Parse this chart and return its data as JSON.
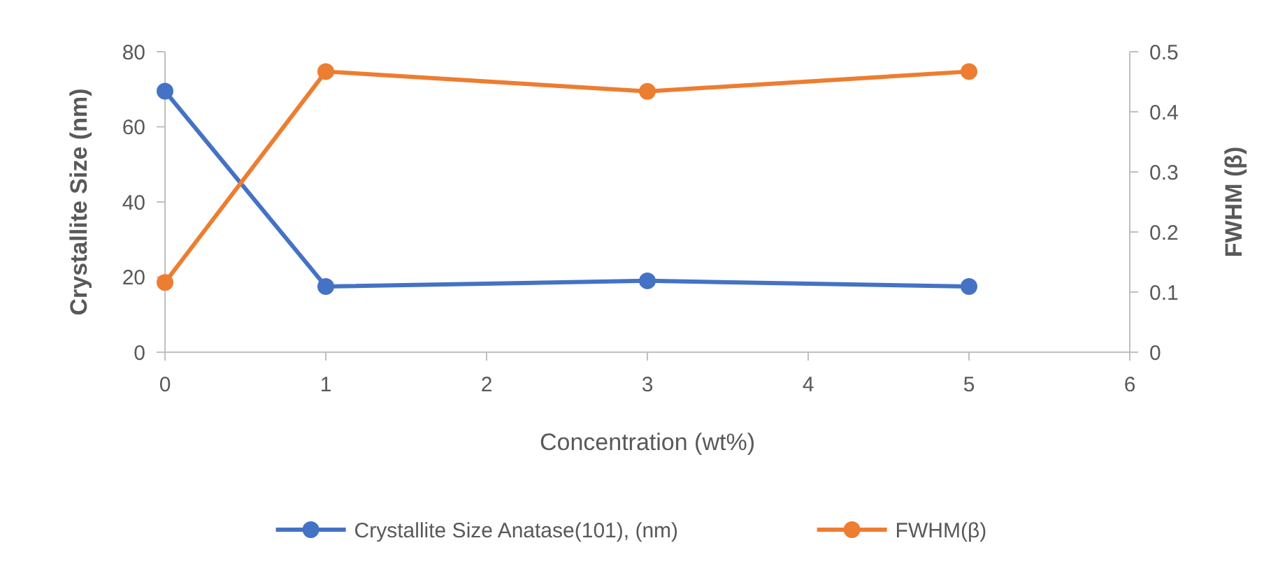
{
  "chart_data": {
    "type": "line",
    "xlabel": "Concentration (wt%)",
    "ylabel": "Crystallite Size (nm)",
    "y2label": "FWHM (β)",
    "xlim": [
      0,
      6
    ],
    "xticks": [
      0,
      1,
      2,
      3,
      4,
      5,
      6
    ],
    "ylim": [
      0,
      80
    ],
    "yticks": [
      0,
      20,
      40,
      60,
      80
    ],
    "y2lim": [
      0,
      0.5
    ],
    "y2ticks": [
      0,
      0.1,
      0.2,
      0.3,
      0.4,
      0.5
    ],
    "x": [
      0,
      1,
      3,
      5
    ],
    "grid": false,
    "legend": "bottom",
    "marker": "circle",
    "line_style": "solid",
    "series": [
      {
        "name": "Crystallite Size Anatase(101), (nm)",
        "color": "#4472c4",
        "values": [
          69.5,
          17.5,
          19,
          17.5
        ]
      },
      {
        "name": "FWHM(β)",
        "color": "#ed7d31",
        "axis": "y2",
        "values": [
          0.116,
          0.467,
          0.434,
          0.467
        ]
      }
    ]
  }
}
